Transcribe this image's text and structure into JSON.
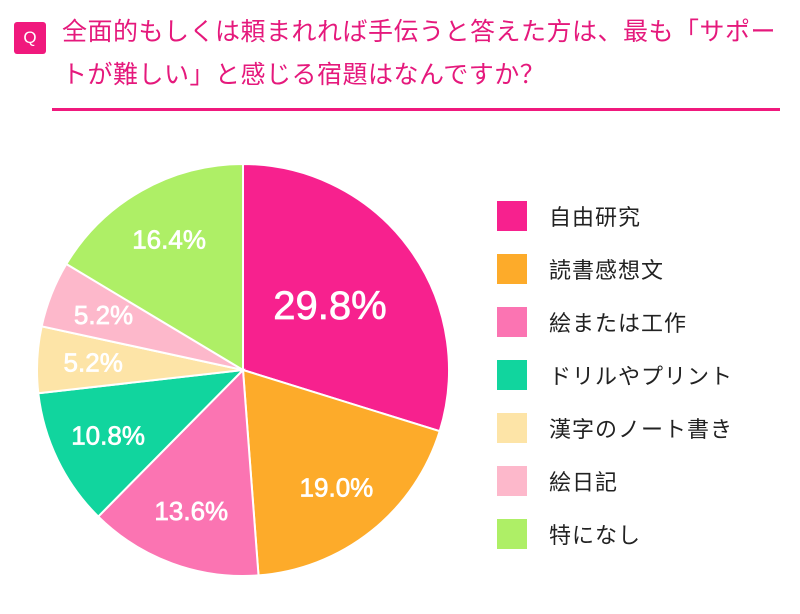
{
  "header": {
    "badge": "Q",
    "question": "全面的もしくは頼まれれば手伝うと答えた方は、最も「サポートが難しい」と感じる宿題はなんですか？"
  },
  "colors": {
    "accent": "#f0197d",
    "header_text": "#e5197c",
    "slices": [
      "#f7218e",
      "#fdab2a",
      "#fb74b2",
      "#11d59e",
      "#fde4a7",
      "#fdb8cb",
      "#aeef66"
    ]
  },
  "chart_data": {
    "type": "pie",
    "title": "",
    "start_angle_deg": 0,
    "direction": "clockwise",
    "legend_position": "right",
    "slices": [
      {
        "label": "自由研究",
        "value": 29.8,
        "display": "29.8%"
      },
      {
        "label": "読書感想文",
        "value": 19.0,
        "display": "19.0%"
      },
      {
        "label": "絵または工作",
        "value": 13.6,
        "display": "13.6%"
      },
      {
        "label": "ドリルやプリント",
        "value": 10.8,
        "display": "10.8%"
      },
      {
        "label": "漢字のノート書き",
        "value": 5.2,
        "display": "5.2%"
      },
      {
        "label": "絵日記",
        "value": 5.2,
        "display": "5.2%"
      },
      {
        "label": "特になし",
        "value": 16.4,
        "display": "16.4%"
      }
    ]
  }
}
